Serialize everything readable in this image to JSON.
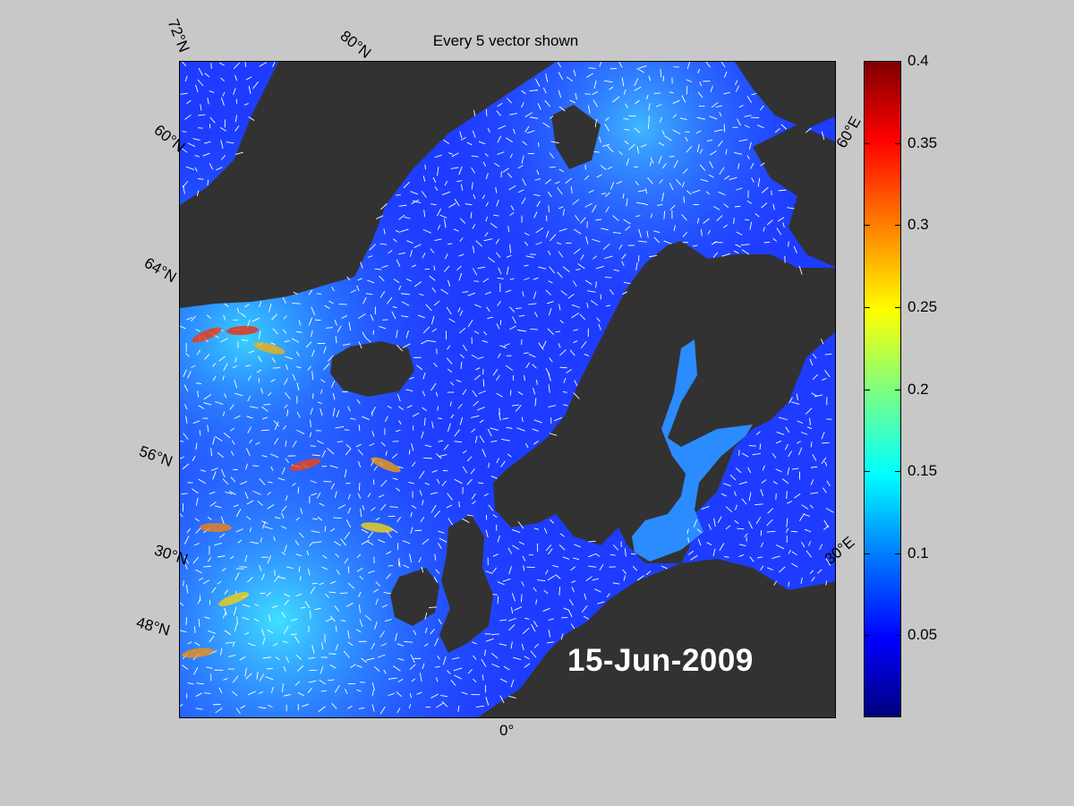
{
  "title": "Every 5 vector shown",
  "date_label": "15-Jun-2009",
  "latitude_labels": [
    "72°N",
    "60°N",
    "64°N",
    "56°N",
    "30°N",
    "48°N"
  ],
  "longitude_labels": [
    "80°N",
    "60°E",
    "30°E",
    "0°"
  ],
  "colorbar": {
    "ticks": [
      "0.4",
      "0.35",
      "0.3",
      "0.25",
      "0.2",
      "0.15",
      "0.1",
      "0.05"
    ],
    "values": [
      0.4,
      0.35,
      0.3,
      0.25,
      0.2,
      0.15,
      0.1,
      0.05
    ],
    "range": [
      0,
      0.4
    ],
    "colormap": "jet"
  },
  "colors": {
    "land": "#323232",
    "ocean": "#1f3cff",
    "vector": "#ffffff",
    "background": "#c8c8c8"
  }
}
